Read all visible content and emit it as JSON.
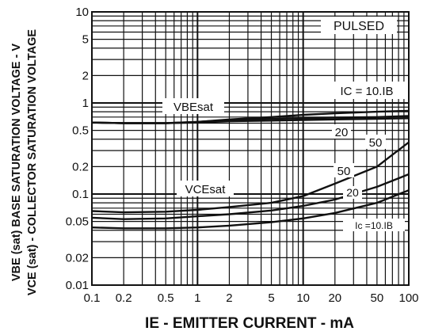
{
  "chart_data": {
    "type": "line",
    "x_scale": "log",
    "y_scale": "log",
    "xlim": [
      0.1,
      100
    ],
    "ylim": [
      0.01,
      10
    ],
    "grid": true,
    "x_ticks": [
      0.1,
      0.2,
      0.5,
      1,
      2,
      5,
      10,
      20,
      50,
      100
    ],
    "x_tick_labels": [
      "0.1",
      "0.2",
      "0.5",
      "1",
      "2",
      "5",
      "10",
      "20",
      "50",
      "100"
    ],
    "y_ticks": [
      0.01,
      0.02,
      0.05,
      0.1,
      0.2,
      0.5,
      1,
      2,
      5,
      10
    ],
    "y_tick_labels": [
      "0.01",
      "0.02",
      "0.05",
      "0.1",
      "0.2",
      "0.5",
      "1",
      "2",
      "5",
      "10"
    ],
    "xlabel": "IE - EMITTER CURRENT - mA",
    "ylabel_line1": "VBE (sat) BASE SATURATION VOLTAGE - V",
    "ylabel_line2": "VCE (sat) - COLLECTOR SATURATION VOLTAGE",
    "annotations": {
      "pulsed": "PULSED",
      "ic_ratio": "IC = 10.IB",
      "vbesat": "VBEsat",
      "vcesat": "VCEsat",
      "vbe_20": "20",
      "vbe_50": "50",
      "vce_50": "50",
      "vce_20": "20",
      "vce_10": "Ic =10.IB"
    },
    "series": [
      {
        "x": [
          0.1,
          0.2,
          0.5,
          1,
          2,
          5,
          10,
          20,
          50,
          100
        ],
        "y": [
          0.61,
          0.6,
          0.6,
          0.62,
          0.66,
          0.7,
          0.74,
          0.77,
          0.8,
          0.82
        ]
      },
      {
        "x": [
          0.1,
          0.2,
          0.5,
          1,
          2,
          5,
          10,
          20,
          50,
          100
        ],
        "y": [
          0.61,
          0.6,
          0.6,
          0.62,
          0.65,
          0.67,
          0.68,
          0.69,
          0.7,
          0.72
        ]
      },
      {
        "x": [
          0.1,
          0.2,
          0.5,
          1,
          2,
          5,
          10,
          20,
          50,
          100
        ],
        "y": [
          0.61,
          0.6,
          0.6,
          0.61,
          0.63,
          0.64,
          0.65,
          0.66,
          0.67,
          0.68
        ]
      },
      {
        "x": [
          0.1,
          0.2,
          0.5,
          1,
          2,
          5,
          10,
          20,
          50,
          70,
          100
        ],
        "y": [
          0.065,
          0.063,
          0.064,
          0.067,
          0.072,
          0.08,
          0.095,
          0.13,
          0.2,
          0.27,
          0.37
        ]
      },
      {
        "x": [
          0.1,
          0.2,
          0.5,
          1,
          2,
          5,
          10,
          20,
          50,
          100
        ],
        "y": [
          0.055,
          0.053,
          0.054,
          0.057,
          0.06,
          0.066,
          0.074,
          0.087,
          0.12,
          0.165
        ]
      },
      {
        "x": [
          0.1,
          0.2,
          0.5,
          1,
          2,
          5,
          10,
          20,
          50,
          100
        ],
        "y": [
          0.043,
          0.042,
          0.042,
          0.043,
          0.045,
          0.049,
          0.054,
          0.062,
          0.08,
          0.11
        ]
      }
    ]
  }
}
